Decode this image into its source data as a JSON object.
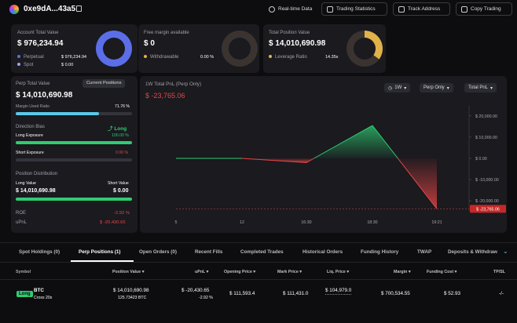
{
  "header": {
    "address": "0xe9dA...43a5",
    "buttons": [
      {
        "label": "Real-time Data",
        "icon": "clock-icon"
      },
      {
        "label": "Trading Statistics",
        "icon": "stats-icon"
      },
      {
        "label": "Track Address",
        "icon": "monitor-icon"
      },
      {
        "label": "Copy Trading",
        "icon": "copy-trade-icon"
      }
    ]
  },
  "account": {
    "title": "Account Total Value",
    "value": "$ 976,234.94",
    "rows": [
      {
        "label": "Perpetual",
        "value": "$ 976,234.94",
        "color": "#5b6ee8"
      },
      {
        "label": "Spot",
        "value": "$ 0.00",
        "color": "#9aa4ff"
      }
    ],
    "perp_share": 1.0
  },
  "margin": {
    "title": "Free margin available",
    "value": "$ 0",
    "row_label": "Withdrawable",
    "row_value": "0.00 %",
    "color": "#e0b24a",
    "fill": 0
  },
  "position": {
    "title": "Total Position Value",
    "value": "$ 14,010,690.98",
    "row_label": "Leverage Ratio",
    "row_value": "14.35x",
    "color": "#e0b24a",
    "fill": 0.35
  },
  "perp": {
    "title": "Perp Total Value",
    "badge": "Current Positions",
    "value": "$ 14,010,690.98",
    "margin_label": "Margin Used Ratio",
    "margin_value": "71.76 %",
    "margin_ratio": 0.7176,
    "bias_label": "Direction Bias",
    "bias_value": "Long",
    "long_label": "Long Exposure",
    "long_value": "100.00 %",
    "long_ratio": 1.0,
    "short_label": "Short Exposure",
    "short_value": "0.00 %",
    "short_ratio": 0.0,
    "dist_title": "Position Distribution",
    "long_val_label": "Long Value",
    "short_val_label": "Short Value",
    "long_val": "$ 14,010,690.98",
    "short_val": "$ 0.00",
    "roe_label": "ROE",
    "roe_value": "-2.92 %",
    "upnl_label": "uPnL",
    "upnl_value": "$ -20,430.65"
  },
  "pnl_chart": {
    "title": "1W Total PnL (Perp Only)",
    "value": "$ -23,765.06",
    "dropdowns": [
      "1W",
      "Perp Only",
      "Total PnL"
    ]
  },
  "chart_data": {
    "type": "area",
    "x": [
      "5",
      "12",
      "16:30",
      "18:30",
      "19:21"
    ],
    "y": [
      0,
      0,
      -2000,
      15500,
      -23765.06
    ],
    "y_ticks": [
      "$ 20,000.00",
      "$ 10,000.00",
      "$ 0.00",
      "$ -10,000.00",
      "$ -20,000.00"
    ],
    "y_tick_values": [
      20000,
      10000,
      0,
      -10000,
      -20000
    ],
    "ylim": [
      -24000,
      24000
    ],
    "last_label": "$ -23,765.06",
    "positive_color": "#2ecc71",
    "negative_color": "#e84545"
  },
  "tabs": [
    "Spot Holdings (0)",
    "Perp Positions (1)",
    "Open Orders (0)",
    "Recent Fills",
    "Completed Trades",
    "Historical Orders",
    "Funding History",
    "TWAP",
    "Deposits & Withdraw"
  ],
  "active_tab": 1,
  "table": {
    "headers": [
      "Symbol",
      "Position Value",
      "uPnL",
      "Opening Price",
      "Mark Price",
      "Liq. Price",
      "Margin",
      "Funding Cost",
      "TP/SL"
    ],
    "row": {
      "side": "Long",
      "symbol": "BTC",
      "mode": "Cross 20x",
      "position_value": "$ 14,010,690.98",
      "position_size": "125.73423 BTC",
      "upnl": "$ -20,430.65",
      "upnl_pct": "-2.92 %",
      "opening_price": "$ 111,593.4",
      "mark_price": "$ 111,431.0",
      "liq_price": "$ 104,979.0",
      "margin": "$ 700,534.55",
      "funding_cost": "$ 52.93",
      "tpsl": "-/-"
    }
  }
}
